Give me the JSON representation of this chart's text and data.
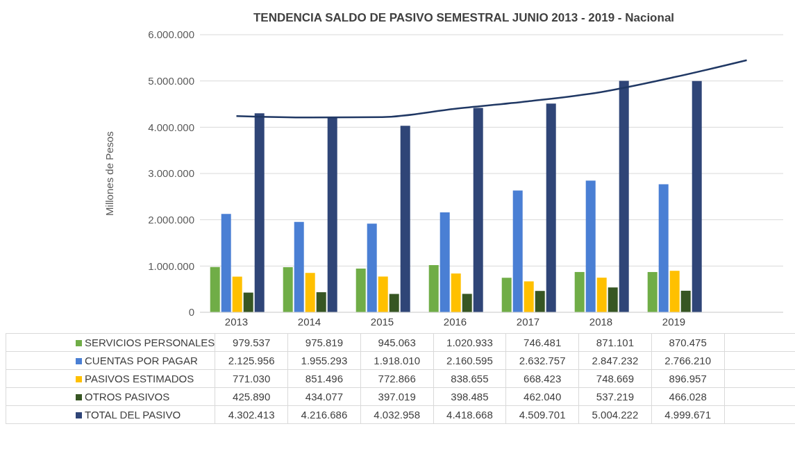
{
  "chart_data": {
    "type": "bar",
    "title": "TENDENCIA SALDO DE PASIVO SEMESTRAL JUNIO 2013 - 2019 - Nacional",
    "ylabel": "Millones de Pesos",
    "categories": [
      "2013",
      "2014",
      "2015",
      "2016",
      "2017",
      "2018",
      "2019",
      null
    ],
    "series": [
      {
        "name": "SERVICIOS PERSONALES",
        "color": "#70ad47",
        "values": [
          979537,
          975819,
          945063,
          1020933,
          746481,
          871101,
          870475,
          null
        ],
        "value_labels": [
          "979.537",
          "975.819",
          "945.063",
          "1.020.933",
          "746.481",
          "871.101",
          "870.475",
          null
        ]
      },
      {
        "name": "CUENTAS POR PAGAR",
        "color": "#4a7fd4",
        "values": [
          2125956,
          1955293,
          1918010,
          2160595,
          2632757,
          2847232,
          2766210,
          null
        ],
        "value_labels": [
          "2.125.956",
          "1.955.293",
          "1.918.010",
          "2.160.595",
          "2.632.757",
          "2.847.232",
          "2.766.210",
          null
        ]
      },
      {
        "name": "PASIVOS ESTIMADOS",
        "color": "#ffc000",
        "values": [
          771030,
          851496,
          772866,
          838655,
          668423,
          748669,
          896957,
          null
        ],
        "value_labels": [
          "771.030",
          "851.496",
          "772.866",
          "838.655",
          "668.423",
          "748.669",
          "896.957",
          null
        ]
      },
      {
        "name": "OTROS PASIVOS",
        "color": "#375623",
        "values": [
          425890,
          434077,
          397019,
          398485,
          462040,
          537219,
          466028,
          null
        ],
        "value_labels": [
          "425.890",
          "434.077",
          "397.019",
          "398.485",
          "462.040",
          "537.219",
          "466.028",
          null
        ]
      },
      {
        "name": "TOTAL DEL PASIVO",
        "color": "#2f4577",
        "values": [
          4302413,
          4216686,
          4032958,
          4418668,
          4509701,
          5004222,
          4999671,
          null
        ],
        "value_labels": [
          "4.302.413",
          "4.216.686",
          "4.032.958",
          "4.418.668",
          "4.509.701",
          "5.004.222",
          "4.999.671",
          null
        ]
      },
      {
        "type": "line",
        "color": "#203864",
        "values": [
          4240000,
          4210000,
          4220000,
          4400000,
          4560000,
          4760000,
          5080000,
          5450000
        ]
      }
    ],
    "ylim": [
      0,
      6000000
    ],
    "yticks": [
      {
        "value": 0,
        "label": "0"
      },
      {
        "value": 1000000,
        "label": "1.000.000"
      },
      {
        "value": 2000000,
        "label": "2.000.000"
      },
      {
        "value": 3000000,
        "label": "3.000.000"
      },
      {
        "value": 4000000,
        "label": "4.000.000"
      },
      {
        "value": 5000000,
        "label": "5.000.000"
      },
      {
        "value": 6000000,
        "label": "6.000.000"
      }
    ],
    "grid": "y",
    "legend": "bottom"
  }
}
